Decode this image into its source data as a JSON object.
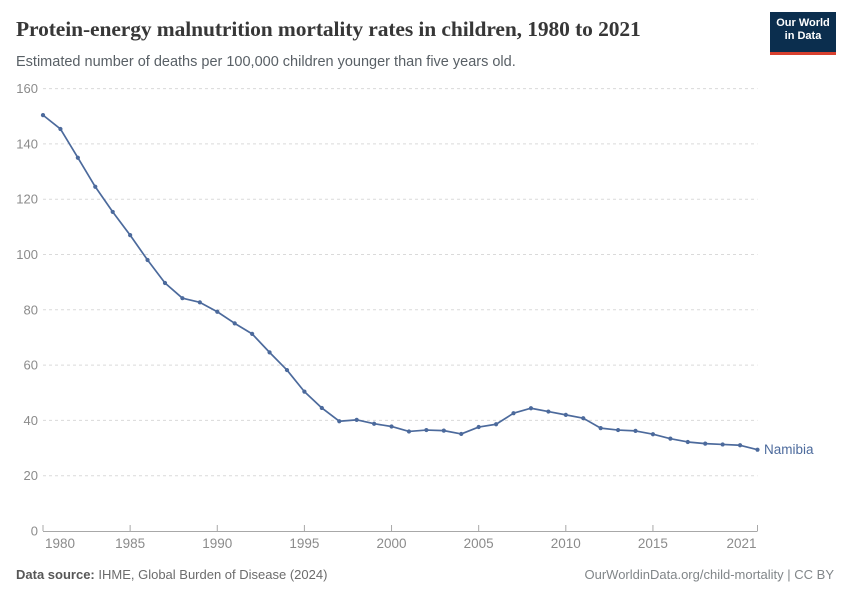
{
  "header": {
    "title": "Protein-energy malnutrition mortality rates in children, 1980 to 2021",
    "subtitle": "Estimated number of deaths per 100,000 children younger than five years old."
  },
  "logo": {
    "line1": "Our World",
    "line2": "in Data"
  },
  "chart_data": {
    "type": "line",
    "title": "Protein-energy malnutrition mortality rates in children, 1980 to 2021",
    "xlabel": "",
    "ylabel": "Deaths per 100,000 children younger than five",
    "xlim": [
      1980,
      2021
    ],
    "ylim": [
      0,
      160
    ],
    "yticks": [
      0,
      20,
      40,
      60,
      80,
      100,
      120,
      140,
      160
    ],
    "xticks": [
      1980,
      1985,
      1990,
      1995,
      2000,
      2005,
      2010,
      2015,
      2021
    ],
    "grid": "horizontal-dashed",
    "legend_position": "end-of-line-label",
    "x": [
      1980,
      1981,
      1982,
      1983,
      1984,
      1985,
      1986,
      1987,
      1988,
      1989,
      1990,
      1991,
      1992,
      1993,
      1994,
      1995,
      1996,
      1997,
      1998,
      1999,
      2000,
      2001,
      2002,
      2003,
      2004,
      2005,
      2006,
      2007,
      2008,
      2009,
      2010,
      2011,
      2012,
      2013,
      2014,
      2015,
      2016,
      2017,
      2018,
      2019,
      2020,
      2021
    ],
    "series": [
      {
        "name": "Namibia",
        "color": "#4C6A9C",
        "values": [
          150.4,
          145.4,
          135.0,
          124.5,
          115.4,
          107.0,
          98.0,
          89.7,
          84.2,
          82.7,
          79.3,
          75.1,
          71.3,
          64.6,
          58.2,
          50.4,
          44.5,
          39.7,
          40.2,
          38.8,
          37.8,
          36.0,
          36.5,
          36.3,
          35.1,
          37.6,
          38.6,
          42.6,
          44.4,
          43.2,
          42.0,
          40.8,
          37.2,
          36.5,
          36.2,
          35.0,
          33.4,
          32.2,
          31.6,
          31.3,
          31.0,
          29.4
        ]
      }
    ]
  },
  "footer": {
    "source_label": "Data source:",
    "source_text": " IHME, Global Burden of Disease (2024)",
    "credit": "OurWorldinData.org/child-mortality | CC BY"
  },
  "colors": {
    "line": "#4C6A9C",
    "grid": "#dadada",
    "axis": "#a8a8a8",
    "tick_label": "#8b8b8b",
    "entity_label": "#4C6A9C"
  }
}
